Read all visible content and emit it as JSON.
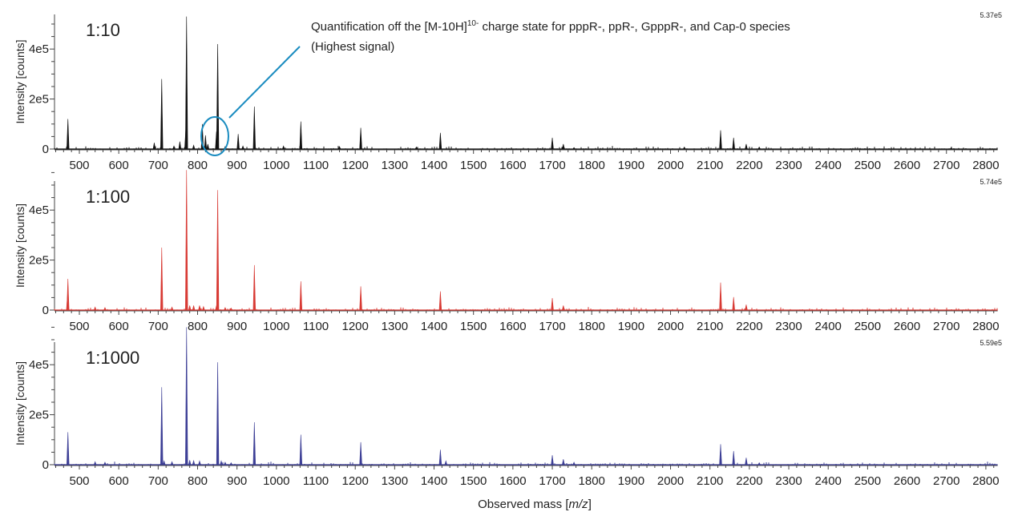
{
  "chart_data": [
    {
      "type": "line",
      "label": "1:10",
      "max_label": "5.37e5",
      "color": "#111111",
      "ylabel": "Intensity [counts]",
      "yticks": [
        "0",
        "2e5",
        "4e5"
      ],
      "ylim": [
        0,
        537000
      ],
      "xlim": [
        437,
        2830
      ],
      "peaks": [
        [
          471,
          120000
        ],
        [
          690,
          25000
        ],
        [
          709,
          280000
        ],
        [
          740,
          12000
        ],
        [
          755,
          30000
        ],
        [
          770,
          75000
        ],
        [
          772,
          530000
        ],
        [
          790,
          15000
        ],
        [
          812,
          100000
        ],
        [
          820,
          55000
        ],
        [
          826,
          20000
        ],
        [
          848,
          70000
        ],
        [
          851,
          420000
        ],
        [
          870,
          10000
        ],
        [
          903,
          60000
        ],
        [
          915,
          12000
        ],
        [
          944,
          170000
        ],
        [
          1018,
          12000
        ],
        [
          1062,
          110000
        ],
        [
          1160,
          10000
        ],
        [
          1214,
          85000
        ],
        [
          1355,
          8000
        ],
        [
          1416,
          65000
        ],
        [
          1700,
          45000
        ],
        [
          1728,
          20000
        ],
        [
          1755,
          6000
        ],
        [
          2035,
          8000
        ],
        [
          2127,
          75000
        ],
        [
          2160,
          45000
        ],
        [
          2192,
          20000
        ],
        [
          2225,
          8000
        ],
        [
          2712,
          5000
        ]
      ]
    },
    {
      "type": "line",
      "label": "1:100",
      "max_label": "5.74e5",
      "color": "#d83a34",
      "ylabel": "Intensity [counts]",
      "yticks": [
        "0",
        "2e5",
        "4e5"
      ],
      "ylim": [
        0,
        574000
      ],
      "xlim": [
        437,
        2830
      ],
      "peaks": [
        [
          471,
          125000
        ],
        [
          470,
          55000
        ],
        [
          540,
          12000
        ],
        [
          565,
          10000
        ],
        [
          709,
          250000
        ],
        [
          735,
          12000
        ],
        [
          772,
          560000
        ],
        [
          780,
          18000
        ],
        [
          790,
          18000
        ],
        [
          805,
          18000
        ],
        [
          815,
          14000
        ],
        [
          848,
          18000
        ],
        [
          851,
          480000
        ],
        [
          870,
          10000
        ],
        [
          885,
          8000
        ],
        [
          944,
          180000
        ],
        [
          1062,
          115000
        ],
        [
          1214,
          95000
        ],
        [
          1416,
          75000
        ],
        [
          1700,
          48000
        ],
        [
          1728,
          18000
        ],
        [
          2127,
          110000
        ],
        [
          2160,
          52000
        ],
        [
          2192,
          22000
        ]
      ]
    },
    {
      "type": "line",
      "label": "1:1000",
      "max_label": "5.59e5",
      "color": "#3d3f96",
      "ylabel": "Intensity [counts]",
      "yticks": [
        "0",
        "2e5",
        "4e5"
      ],
      "ylim": [
        0,
        559000
      ],
      "xlim": [
        437,
        2830
      ],
      "peaks": [
        [
          471,
          130000
        ],
        [
          540,
          12000
        ],
        [
          565,
          10000
        ],
        [
          709,
          310000
        ],
        [
          715,
          15000
        ],
        [
          735,
          12000
        ],
        [
          772,
          550000
        ],
        [
          780,
          18000
        ],
        [
          790,
          16000
        ],
        [
          805,
          15000
        ],
        [
          851,
          410000
        ],
        [
          860,
          15000
        ],
        [
          870,
          10000
        ],
        [
          885,
          8000
        ],
        [
          944,
          170000
        ],
        [
          1062,
          120000
        ],
        [
          1214,
          90000
        ],
        [
          1416,
          60000
        ],
        [
          1430,
          15000
        ],
        [
          1700,
          38000
        ],
        [
          1728,
          22000
        ],
        [
          1755,
          10000
        ],
        [
          2127,
          82000
        ],
        [
          2160,
          55000
        ],
        [
          2192,
          28000
        ],
        [
          2225,
          8000
        ]
      ]
    }
  ],
  "xticks": [
    "500",
    "600",
    "700",
    "800",
    "900",
    "1000",
    "1100",
    "1200",
    "1300",
    "1400",
    "1500",
    "1600",
    "1700",
    "1800",
    "1900",
    "2000",
    "2100",
    "2200",
    "2300",
    "2400",
    "2500",
    "2600",
    "2700",
    "2800"
  ],
  "xlabel_prefix": "Observed mass [",
  "xlabel_italic": "m/z",
  "xlabel_suffix": "]",
  "annotation": {
    "line1_a": "Quantification off the [M-10H]",
    "line1_sup": "10-",
    "line1_b": " charge state for pppR-, ppR-, GpppR-, and Cap-0 species",
    "line2": "(Highest signal)",
    "color": "#1a8cc0"
  }
}
